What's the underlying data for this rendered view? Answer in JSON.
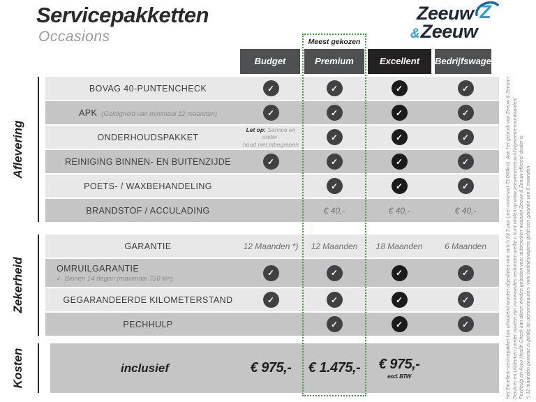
{
  "header": {
    "title": "Servicepakketten",
    "subtitle": "Occasions"
  },
  "logo": {
    "word_top": "Zeeuw",
    "amp": "&",
    "word_bottom": "Zeeuw"
  },
  "colors": {
    "accent_green": "#3aa335",
    "header_gray": "#4f5052",
    "header_dark": "#232122",
    "row_light": "#e8e8e8",
    "row_mid": "#c5c5c5",
    "check_circle": "#414042",
    "check_circle_dark": "#1b1b1b",
    "logo_blue": "#2e9fd9",
    "logo_swoosh_blue": "#1c6ca6",
    "logo_dark": "#1f2733"
  },
  "table": {
    "most_chosen_label": "Meest gekozen",
    "columns": [
      {
        "label": "Budget"
      },
      {
        "label": "Premium",
        "highlighted": true
      },
      {
        "label": "Excellent",
        "dark": true
      },
      {
        "label": "Bedrijfswagens"
      }
    ],
    "sections": [
      {
        "name": "Aflevering",
        "rows": [
          {
            "label": "BOVAG 40-PUNTENCHECK",
            "shade": "light",
            "cells": [
              {
                "type": "check"
              },
              {
                "type": "check"
              },
              {
                "type": "check"
              },
              {
                "type": "check"
              }
            ]
          },
          {
            "label": "APK",
            "sub": "(Geldigheid van minimaal 12 maanden)",
            "shade": "mid",
            "cells": [
              {
                "type": "check"
              },
              {
                "type": "check"
              },
              {
                "type": "check"
              },
              {
                "type": "check"
              }
            ]
          },
          {
            "label": "ONDERHOUDSPAKKET",
            "shade": "light",
            "cells": [
              {
                "type": "note",
                "bold": "Let op:",
                "rest": "Service en onder-",
                "line2": "houd niet inbegrepen"
              },
              {
                "type": "check"
              },
              {
                "type": "check"
              },
              {
                "type": "check"
              }
            ]
          },
          {
            "label": "REINIGING BINNEN- EN BUITENZIJDE",
            "shade": "mid",
            "cells": [
              {
                "type": "check"
              },
              {
                "type": "check"
              },
              {
                "type": "check"
              },
              {
                "type": "check"
              }
            ]
          },
          {
            "label": "POETS- / WAXBEHANDELING",
            "shade": "light",
            "cells": [
              {
                "type": "empty"
              },
              {
                "type": "check"
              },
              {
                "type": "check"
              },
              {
                "type": "check"
              }
            ]
          },
          {
            "label": "BRANDSTOF / ACCULADING",
            "shade": "mid",
            "cells": [
              {
                "type": "empty"
              },
              {
                "type": "text",
                "value": "€ 40,-"
              },
              {
                "type": "text",
                "value": "€ 40,-"
              },
              {
                "type": "text",
                "value": "€ 40,-"
              }
            ]
          }
        ]
      },
      {
        "name": "Zekerheid",
        "rows": [
          {
            "label": "GARANTIE",
            "shade": "light",
            "cells": [
              {
                "type": "text",
                "value": "12 Maanden *)"
              },
              {
                "type": "text",
                "value": "12 Maanden"
              },
              {
                "type": "text",
                "value": "18 Maanden"
              },
              {
                "type": "text",
                "value": "6 Maanden"
              }
            ]
          },
          {
            "label": "OMRUILGARANTIE",
            "sub": "Binnen 14 dagen (maximaal 750 km)",
            "sub_below": true,
            "sub_check": true,
            "shade": "mid",
            "cells": [
              {
                "type": "check"
              },
              {
                "type": "check"
              },
              {
                "type": "check"
              },
              {
                "type": "check"
              }
            ]
          },
          {
            "label": "GEGARANDEERDE KILOMETERSTAND",
            "shade": "light",
            "cells": [
              {
                "type": "check"
              },
              {
                "type": "check"
              },
              {
                "type": "check"
              },
              {
                "type": "check"
              }
            ]
          },
          {
            "label": "PECHHULP",
            "shade": "mid",
            "cells": [
              {
                "type": "empty"
              },
              {
                "type": "check"
              },
              {
                "type": "check"
              },
              {
                "type": "check"
              }
            ]
          }
        ]
      },
      {
        "name": "Kosten",
        "prices": [
          "inclusief",
          "€ 975,-",
          "€ 1.475,-",
          "€ 975,-"
        ],
        "price_note": "excl. BTW"
      }
    ]
  },
  "disclaimer": {
    "lines": [
      "Het Excellent-servicepakket kan uitsluitend worden afgesloten voor auto's tot 5 jaar (met maximaal 75.000km). Aan het gebruik van Zeeuw & Zeeuw+",
      "Services en Uitdeuken zonder spuiten zijn voorwaarden verbonden welke u kunt vinden op www.zeeuwenzeeuw.nl/algemene-voorwaarden/",
      "Pechhulp en Accu Health Check kan alleen worden geboden voor automerken waarvan Zeeuw & Zeeuw officieel dealer is.",
      "*) 12 maanden garantie is geldig op personenauto's, voor bedrijfswagens geldt een garantie van 6 maanden."
    ]
  }
}
